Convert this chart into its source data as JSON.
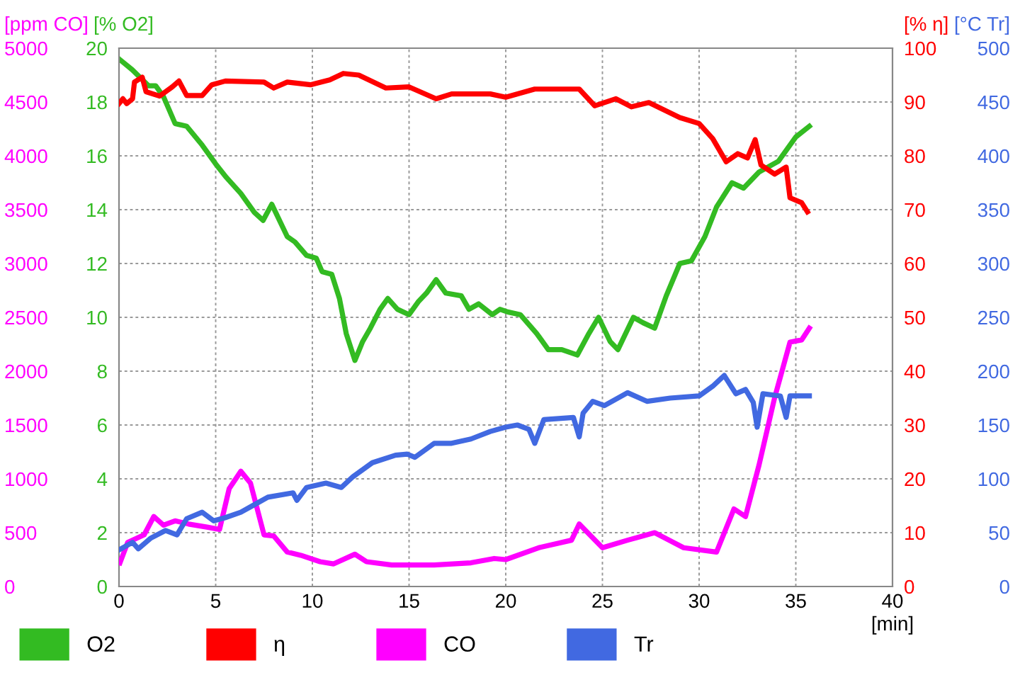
{
  "chart_data": [
    {
      "type": "line",
      "xlabel": "[min]",
      "xlim": [
        0,
        40
      ],
      "xticks": [
        0,
        5,
        10,
        15,
        20,
        25,
        30,
        35,
        40
      ],
      "ylabel": "[% O2]",
      "ylim": [
        0,
        20
      ],
      "yticks": [
        0,
        2,
        4,
        6,
        8,
        10,
        12,
        14,
        16,
        18,
        20
      ],
      "y2label": "[% η]",
      "y2lim": [
        0,
        100
      ],
      "y2ticks": [
        0,
        10,
        20,
        30,
        40,
        50,
        60,
        70,
        80,
        90,
        100
      ],
      "y3label": "[ppm CO]",
      "y3lim": [
        0,
        5000
      ],
      "y3ticks": [
        0,
        500,
        1000,
        1500,
        2000,
        2500,
        3000,
        3500,
        4000,
        4500,
        5000
      ],
      "grid": true,
      "legend": "bottom",
      "line_style": "solid",
      "marker": "none",
      "series": [
        {
          "name": "O2",
          "color": "#33bb22",
          "x": [
            0,
            0.68,
            1.53,
            1.9,
            2.3,
            2.9,
            3.5,
            4.3,
            5.0,
            5.55,
            6.3,
            7.0,
            7.45,
            7.9,
            8.7,
            9.1,
            9.7,
            10.2,
            10.5,
            11.0,
            11.4,
            11.75,
            12.2,
            12.6,
            13.0,
            13.5,
            13.9,
            14.4,
            15.0,
            15.5,
            15.9,
            16.4,
            16.9,
            17.7,
            18.1,
            18.6,
            19.3,
            19.7,
            20.1,
            20.75,
            21.6,
            22.2,
            22.9,
            23.7,
            24.3,
            24.8,
            25.4,
            25.8,
            26.6,
            27.1,
            27.7,
            28.3,
            29.0,
            29.6,
            30.3,
            30.9,
            31.7,
            32.3,
            33.1,
            34.1,
            35.0,
            35.7
          ],
          "values": [
            19.6,
            19.2,
            18.6,
            18.6,
            18.2,
            17.2,
            17.1,
            16.4,
            15.7,
            15.2,
            14.6,
            13.9,
            13.6,
            14.2,
            13.0,
            12.8,
            12.3,
            12.2,
            11.7,
            11.6,
            10.7,
            9.4,
            8.4,
            9.1,
            9.6,
            10.3,
            10.7,
            10.3,
            10.1,
            10.6,
            10.9,
            11.4,
            10.9,
            10.8,
            10.3,
            10.5,
            10.1,
            10.3,
            10.2,
            10.1,
            9.4,
            8.8,
            8.8,
            8.6,
            9.4,
            10.0,
            9.1,
            8.8,
            10.0,
            9.8,
            9.6,
            10.8,
            12.0,
            12.1,
            13.0,
            14.1,
            15.0,
            14.8,
            15.4,
            15.8,
            16.7,
            17.1
          ]
        },
        {
          "name": "η",
          "color": "#ff0000",
          "axis": "y2",
          "x": [
            0,
            0.2,
            0.4,
            0.7,
            0.8,
            1.2,
            1.4,
            2.1,
            2.75,
            3.1,
            3.5,
            4.3,
            4.8,
            5.5,
            7.5,
            8.0,
            8.7,
            9.9,
            10.9,
            11.6,
            12.4,
            13.8,
            15.0,
            16.4,
            17.2,
            19.2,
            20.0,
            21.5,
            23.8,
            24.6,
            25.7,
            26.5,
            27.4,
            29.0,
            30.0,
            30.7,
            31.4,
            32.0,
            32.5,
            32.9,
            33.2,
            33.9,
            34.5,
            34.7,
            35.3,
            35.6
          ],
          "values": [
            89.7,
            90.6,
            89.7,
            90.6,
            93.7,
            94.6,
            91.9,
            91.1,
            92.8,
            93.9,
            91.2,
            91.2,
            93.2,
            93.9,
            93.7,
            92.6,
            93.7,
            93.2,
            94.1,
            95.3,
            95.0,
            92.6,
            92.8,
            90.6,
            91.5,
            91.5,
            90.9,
            92.4,
            92.4,
            89.3,
            90.6,
            89.1,
            89.9,
            87.1,
            86.0,
            83.2,
            78.9,
            80.4,
            79.6,
            83.0,
            78.3,
            76.6,
            77.9,
            72.2,
            71.3,
            69.6
          ]
        },
        {
          "name": "CO",
          "color": "#ff00ff",
          "axis": "y3",
          "x": [
            0.05,
            0.45,
            1.3,
            1.8,
            2.3,
            2.9,
            3.6,
            4.6,
            5.2,
            5.7,
            6.3,
            6.8,
            7.5,
            8.0,
            8.7,
            9.4,
            10.4,
            11.1,
            12.2,
            12.8,
            14.1,
            16.3,
            18.2,
            19.4,
            20.0,
            21.7,
            23.4,
            23.8,
            25.0,
            26.3,
            27.7,
            29.2,
            30.9,
            31.8,
            32.4,
            33.1,
            33.9,
            34.7,
            35.3,
            35.7
          ],
          "values": [
            220,
            410,
            480,
            650,
            570,
            610,
            580,
            550,
            530,
            910,
            1070,
            960,
            480,
            470,
            320,
            290,
            230,
            210,
            300,
            230,
            200,
            200,
            220,
            260,
            250,
            360,
            430,
            580,
            360,
            430,
            500,
            360,
            320,
            720,
            650,
            1130,
            1750,
            2270,
            2290,
            2400
          ]
        }
      ]
    },
    {
      "type": "line",
      "xlim": [
        0,
        40
      ],
      "tick_labels": "y",
      "ylabel": "[°C Tr]",
      "ylim": [
        0,
        500
      ],
      "yticks": [
        0,
        50,
        100,
        150,
        200,
        250,
        300,
        350,
        400,
        450,
        500
      ],
      "legend": "bottom",
      "line_style": "solid",
      "marker": "none",
      "series": [
        {
          "name": "Tr",
          "color": "#4169e1",
          "x": [
            0,
            0.7,
            1.0,
            1.65,
            2.4,
            3.0,
            3.5,
            4.3,
            4.9,
            5.5,
            6.3,
            7.0,
            7.7,
            9.0,
            9.2,
            9.7,
            10.7,
            11.5,
            12.1,
            13.1,
            14.3,
            14.9,
            15.3,
            16.3,
            17.2,
            18.2,
            19.2,
            20.0,
            20.6,
            21.2,
            21.5,
            21.97,
            23.5,
            23.8,
            24.0,
            24.5,
            25.1,
            26.3,
            27.3,
            28.5,
            30.0,
            30.7,
            31.3,
            31.9,
            32.4,
            32.8,
            33.0,
            33.3,
            34.2,
            34.5,
            34.7,
            35.7
          ],
          "values": [
            34,
            41,
            35,
            45,
            52,
            48,
            63,
            69,
            61,
            64,
            69,
            76,
            83,
            87,
            80,
            92,
            96,
            92,
            102,
            115,
            122,
            123,
            120,
            133,
            133,
            137,
            144,
            148,
            150,
            146,
            133,
            155,
            157,
            139,
            161,
            172,
            168,
            180,
            172,
            175,
            177,
            186,
            196,
            179,
            183,
            171,
            148,
            179,
            177,
            157,
            177,
            177
          ]
        }
      ]
    }
  ]
}
